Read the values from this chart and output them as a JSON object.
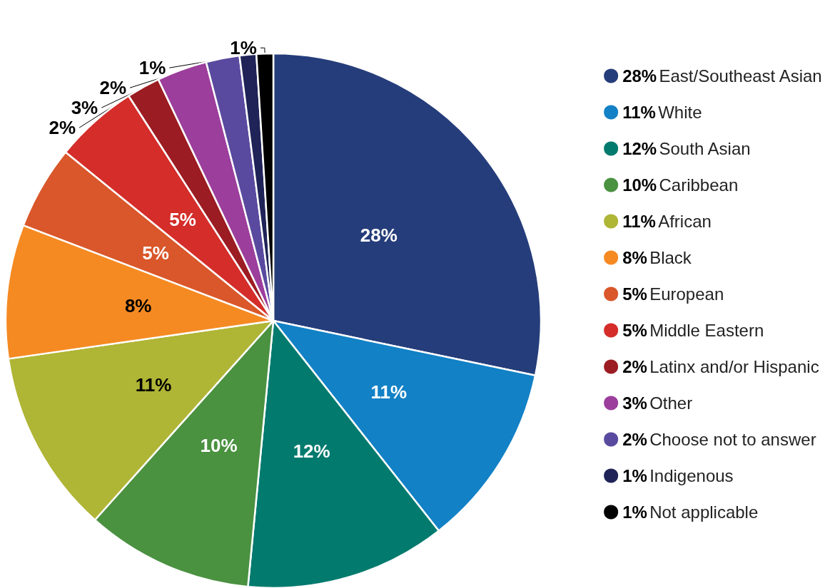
{
  "chart_data": {
    "type": "pie",
    "categories": [
      "East/Southeast Asian",
      "White",
      "South Asian",
      "Caribbean",
      "African",
      "Black",
      "European",
      "Middle Eastern",
      "Latinx and/or Hispanic",
      "Other",
      "Choose not to answer",
      "Indigenous",
      "Not applicable"
    ],
    "values": [
      28,
      11,
      12,
      10,
      11,
      8,
      5,
      5,
      2,
      3,
      2,
      1,
      1
    ],
    "colors": [
      "#253d7a",
      "#1281c6",
      "#037a6e",
      "#4a9140",
      "#afb535",
      "#f58a22",
      "#d9572a",
      "#d42d2a",
      "#9b1c22",
      "#9c3e9c",
      "#5a4a9f",
      "#1f2357",
      "#000000"
    ],
    "value_labels": [
      "28%",
      "11%",
      "12%",
      "10%",
      "11%",
      "8%",
      "5%",
      "5%",
      "2%",
      "3%",
      "2%",
      "1%",
      "1%"
    ],
    "legend": "right"
  }
}
